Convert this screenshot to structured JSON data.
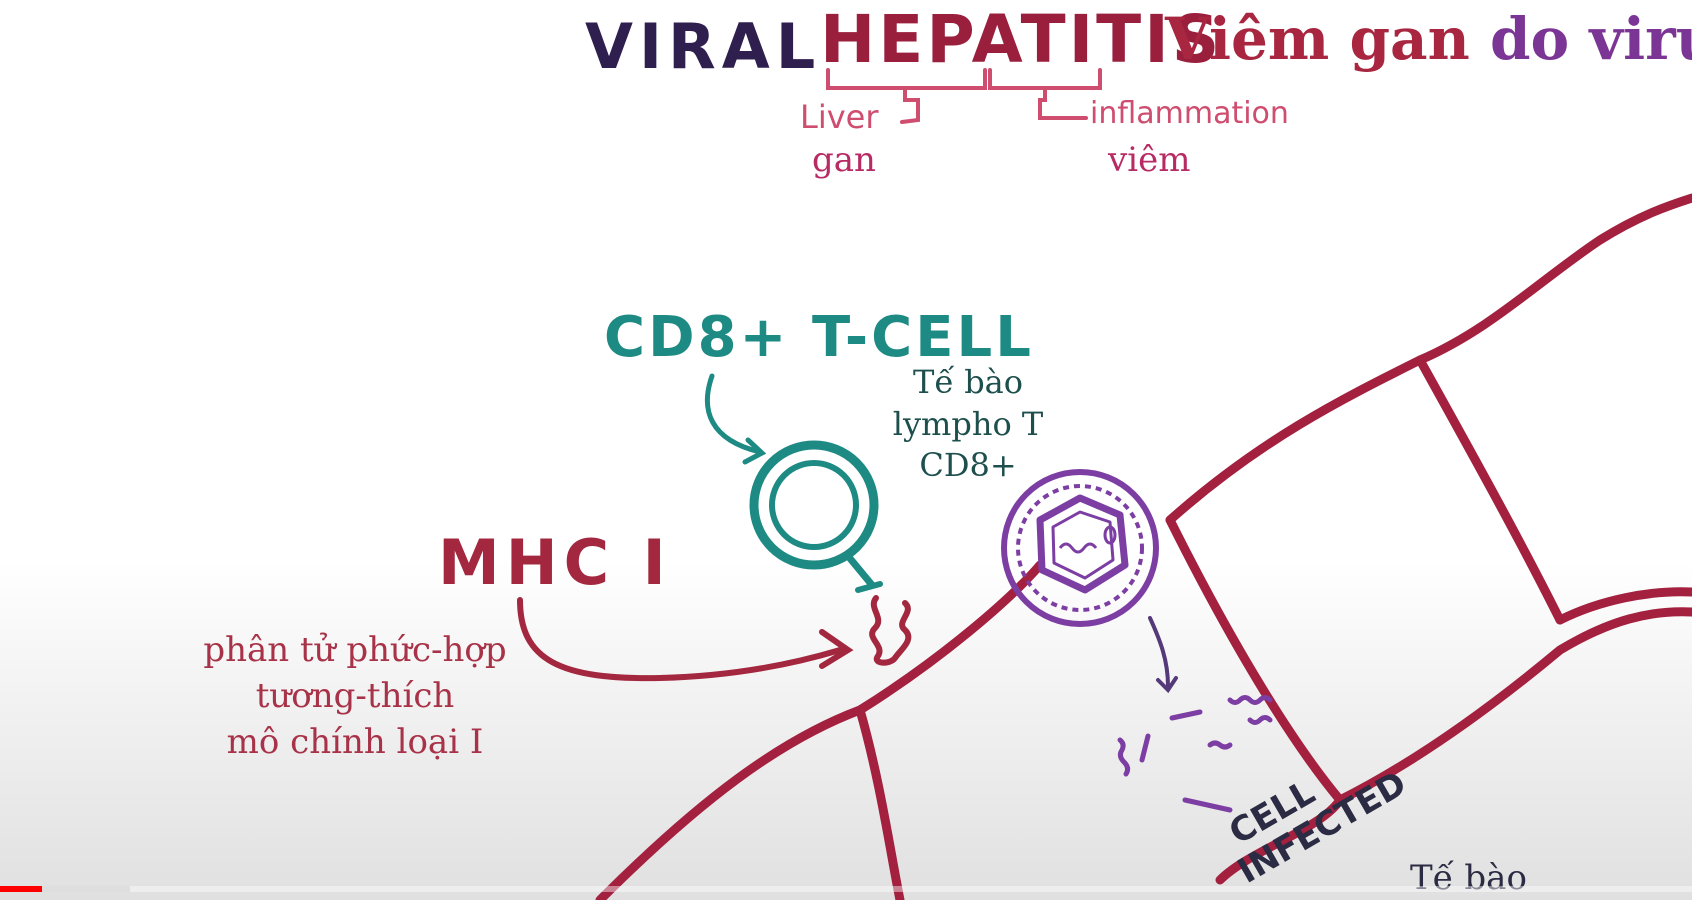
{
  "title": {
    "viral": "VIRAL",
    "hepatitis": "HEPATITIS",
    "vn_part1": "Viêm gan",
    "vn_part2": " do virus"
  },
  "annotations": {
    "liver": "Liver",
    "inflammation": "inflammation",
    "gan": "gan",
    "viem": "viêm"
  },
  "tcell": {
    "label": "CD8+ T-CELL",
    "vn_line1": "Tế bào",
    "vn_line2": "lympho T",
    "vn_line3": "CD8+"
  },
  "mhc": {
    "label": "MHC I",
    "vn_line1": "phân tử phức-hợp",
    "vn_line2": "tương-thích",
    "vn_line3": "mô chính loại I"
  },
  "infected": {
    "line1": "CELL",
    "line2": "INFECTED"
  },
  "bottom_label": "Tế bào",
  "colors": {
    "viral": "#2e1f4f",
    "hepatitis": "#9a1f3d",
    "vn_red": "#a8263f",
    "vn_purple": "#7b3594",
    "cell_wall": "#a3203f",
    "teal": "#1e8a84",
    "virus": "#7d3ea3",
    "mhc_red": "#a3283f"
  },
  "player": {
    "played_fraction": 0.025,
    "buffered_fraction": 0.077
  }
}
